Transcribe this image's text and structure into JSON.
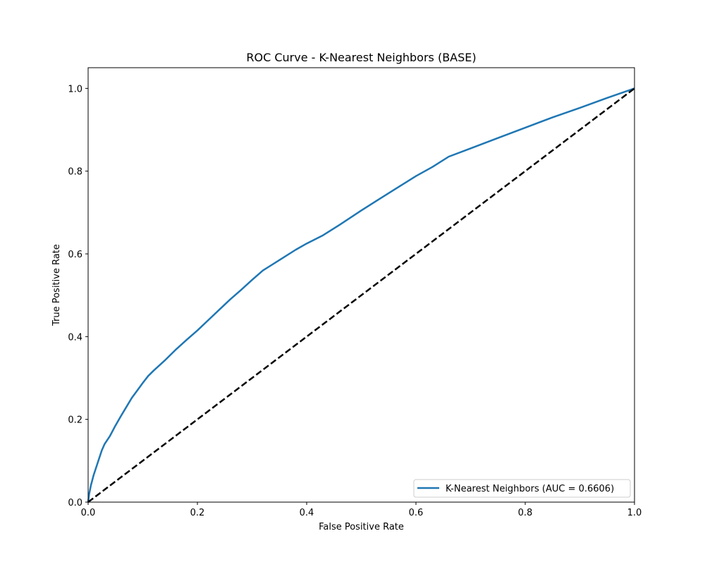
{
  "chart_data": {
    "type": "line",
    "title": "ROC Curve - K-Nearest Neighbors (BASE)",
    "xlabel": "False Positive Rate",
    "ylabel": "True Positive Rate",
    "xlim": [
      0.0,
      1.0
    ],
    "ylim": [
      0.0,
      1.05
    ],
    "xticks": [
      0.0,
      0.2,
      0.4,
      0.6,
      0.8,
      1.0
    ],
    "yticks": [
      0.0,
      0.2,
      0.4,
      0.6,
      0.8,
      1.0
    ],
    "xtick_labels": [
      "0.0",
      "0.2",
      "0.4",
      "0.6",
      "0.8",
      "1.0"
    ],
    "ytick_labels": [
      "0.0",
      "0.2",
      "0.4",
      "0.6",
      "0.8",
      "1.0"
    ],
    "grid": false,
    "legend_position": "lower-right",
    "series": [
      {
        "name": "K-Nearest Neighbors (AUC = 0.6606)",
        "color": "#1f77b4",
        "style": "solid",
        "x": [
          0.0,
          0.002,
          0.005,
          0.01,
          0.015,
          0.02,
          0.025,
          0.03,
          0.04,
          0.05,
          0.06,
          0.07,
          0.08,
          0.09,
          0.1,
          0.11,
          0.12,
          0.14,
          0.16,
          0.18,
          0.2,
          0.22,
          0.24,
          0.26,
          0.28,
          0.3,
          0.32,
          0.35,
          0.38,
          0.4,
          0.43,
          0.46,
          0.5,
          0.53,
          0.56,
          0.6,
          0.63,
          0.66,
          0.7,
          0.75,
          0.8,
          0.85,
          0.9,
          0.95,
          1.0
        ],
        "y": [
          0.0,
          0.02,
          0.04,
          0.065,
          0.085,
          0.105,
          0.125,
          0.14,
          0.16,
          0.185,
          0.208,
          0.23,
          0.252,
          0.27,
          0.288,
          0.305,
          0.318,
          0.342,
          0.368,
          0.392,
          0.415,
          0.44,
          0.465,
          0.49,
          0.513,
          0.537,
          0.56,
          0.585,
          0.61,
          0.625,
          0.645,
          0.67,
          0.705,
          0.73,
          0.755,
          0.788,
          0.81,
          0.835,
          0.855,
          0.88,
          0.905,
          0.93,
          0.953,
          0.977,
          1.0
        ]
      },
      {
        "name": "",
        "color": "#000000",
        "style": "dashed",
        "x": [
          0.0,
          1.0
        ],
        "y": [
          0.0,
          1.0
        ]
      }
    ]
  }
}
